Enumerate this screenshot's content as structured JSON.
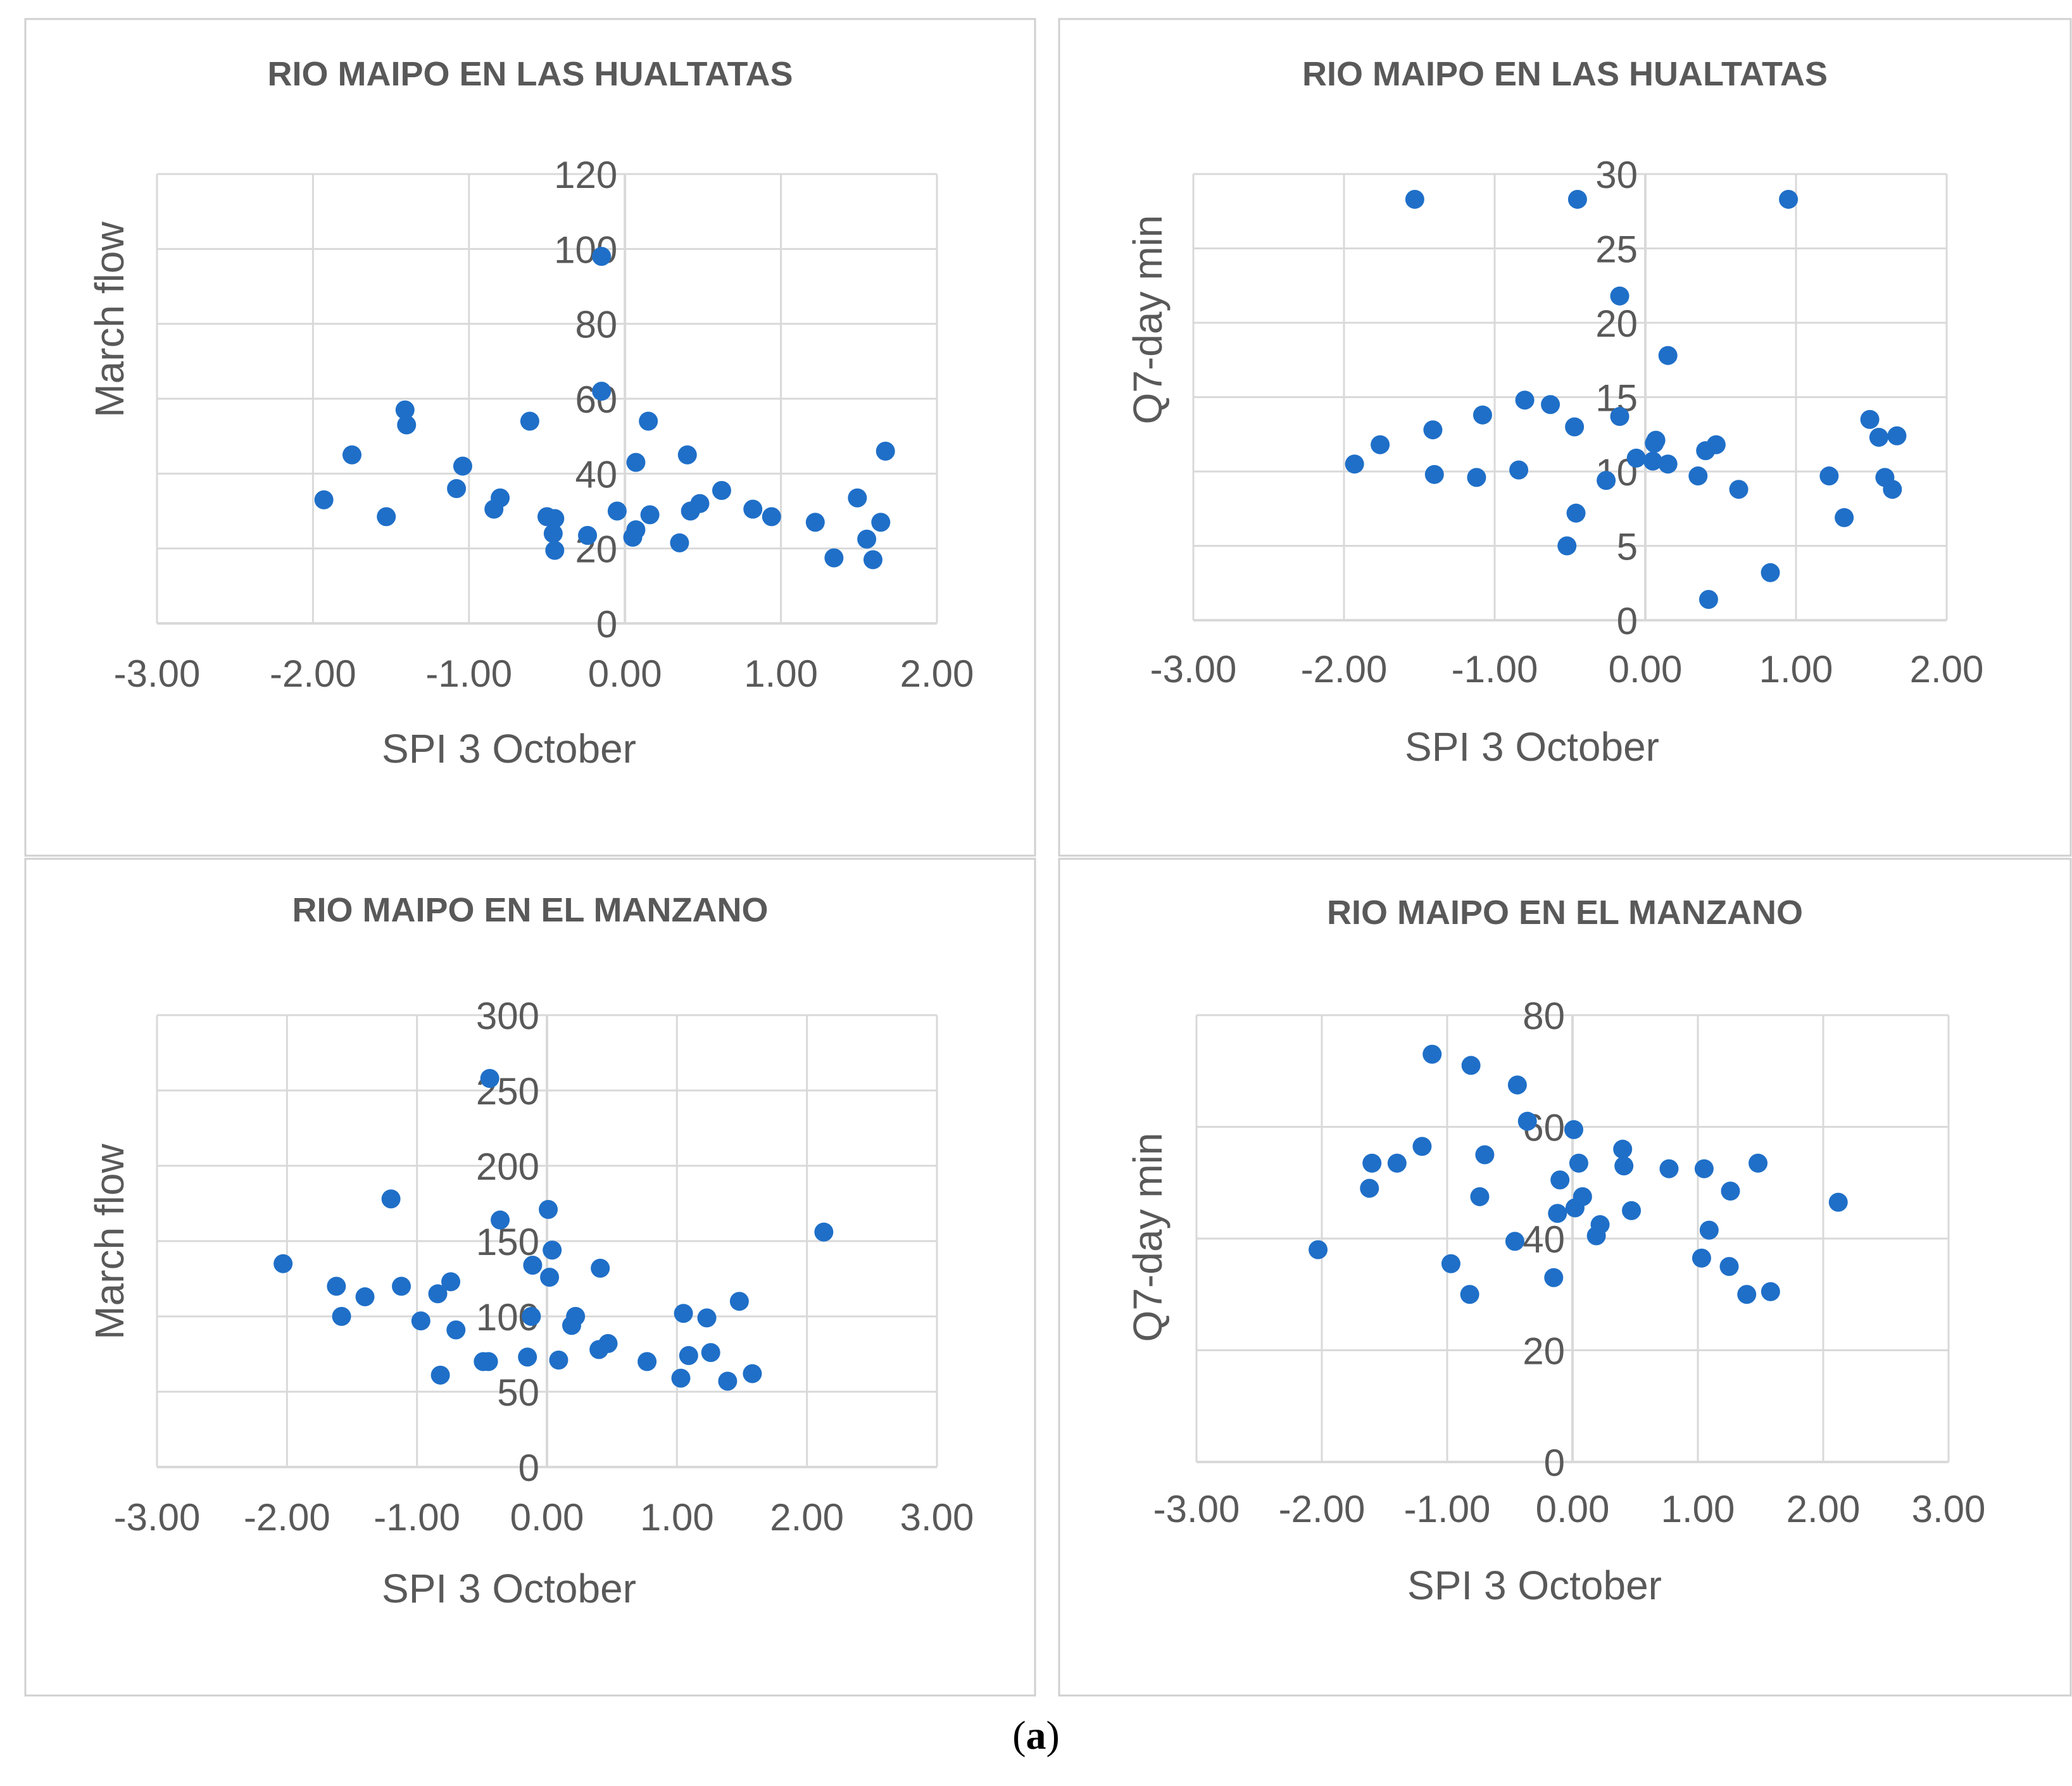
{
  "caption": {
    "open": "(",
    "letter": "a",
    "close": ")"
  },
  "style": {
    "point_color": "#1f6fc8",
    "grid_color": "#d9d9d9",
    "text_color": "#595959",
    "border_color": "#d0d0d0"
  },
  "chart_data": [
    {
      "type": "scatter",
      "title": "RIO MAIPO EN LAS HUALTATAS",
      "xlabel": "SPI 3 October",
      "ylabel": "March flow",
      "xlim": [
        -3,
        2
      ],
      "ylim": [
        0,
        120
      ],
      "xticks": [
        -3,
        -2,
        -1,
        0,
        1,
        2
      ],
      "xtick_labels": [
        "-3.00",
        "-2.00",
        "-1.00",
        "0.00",
        "1.00",
        "2.00"
      ],
      "yticks": [
        0,
        20,
        40,
        60,
        80,
        100,
        120
      ],
      "ytick_labels": [
        "0",
        "20",
        "40",
        "60",
        "80",
        "100",
        "120"
      ],
      "points": [
        [
          -1.93,
          33
        ],
        [
          -1.75,
          45
        ],
        [
          -1.53,
          28.5
        ],
        [
          -1.41,
          57
        ],
        [
          -1.4,
          53
        ],
        [
          -1.08,
          36
        ],
        [
          -1.04,
          42
        ],
        [
          -0.84,
          30.5
        ],
        [
          -0.8,
          33.5
        ],
        [
          -0.61,
          54
        ],
        [
          -0.5,
          28.5
        ],
        [
          -0.46,
          24
        ],
        [
          -0.45,
          28
        ],
        [
          -0.45,
          19.5
        ],
        [
          -0.24,
          23.5
        ],
        [
          -0.15,
          98
        ],
        [
          -0.15,
          62
        ],
        [
          -0.05,
          30
        ],
        [
          0.07,
          43
        ],
        [
          0.07,
          25
        ],
        [
          0.05,
          23
        ],
        [
          0.15,
          54
        ],
        [
          0.16,
          29
        ],
        [
          0.35,
          21.5
        ],
        [
          0.4,
          45
        ],
        [
          0.42,
          30
        ],
        [
          0.48,
          32
        ],
        [
          0.62,
          35.5
        ],
        [
          0.82,
          30.5
        ],
        [
          0.94,
          28.5
        ],
        [
          1.22,
          27
        ],
        [
          1.49,
          33.5
        ],
        [
          1.55,
          22.5
        ],
        [
          1.59,
          17
        ],
        [
          1.64,
          27
        ],
        [
          1.67,
          46
        ],
        [
          1.34,
          17.5
        ]
      ]
    },
    {
      "type": "scatter",
      "title": "RIO MAIPO EN LAS HUALTATAS",
      "xlabel": "SPI 3 October",
      "ylabel": "Q7-day min",
      "xlim": [
        -3,
        2
      ],
      "ylim": [
        0,
        30
      ],
      "xticks": [
        -3,
        -2,
        -1,
        0,
        1,
        2
      ],
      "xtick_labels": [
        "-3.00",
        "-2.00",
        "-1.00",
        "0.00",
        "1.00",
        "2.00"
      ],
      "yticks": [
        0,
        5,
        10,
        15,
        20,
        25,
        30
      ],
      "ytick_labels": [
        "0",
        "5",
        "10",
        "15",
        "20",
        "25",
        "30"
      ],
      "points": [
        [
          -1.93,
          10.5
        ],
        [
          -1.76,
          11.8
        ],
        [
          -1.53,
          28.3
        ],
        [
          -1.41,
          12.8
        ],
        [
          -1.4,
          9.8
        ],
        [
          -1.08,
          13.8
        ],
        [
          -1.12,
          9.6
        ],
        [
          -0.84,
          10.1
        ],
        [
          -0.8,
          14.8
        ],
        [
          -0.63,
          14.5
        ],
        [
          -0.52,
          5
        ],
        [
          -0.46,
          7.2
        ],
        [
          -0.47,
          13.0
        ],
        [
          -0.45,
          28.3
        ],
        [
          -0.26,
          9.4
        ],
        [
          -0.17,
          13.7
        ],
        [
          -0.17,
          21.8
        ],
        [
          -0.06,
          10.9
        ],
        [
          0.05,
          10.7
        ],
        [
          0.07,
          12.1
        ],
        [
          0.06,
          11.9
        ],
        [
          0.15,
          17.8
        ],
        [
          0.15,
          10.5
        ],
        [
          0.35,
          9.7
        ],
        [
          0.4,
          11.4
        ],
        [
          0.42,
          1.4
        ],
        [
          0.47,
          11.8
        ],
        [
          0.62,
          8.8
        ],
        [
          0.83,
          3.2
        ],
        [
          0.95,
          28.3
        ],
        [
          1.22,
          9.7
        ],
        [
          1.32,
          6.9
        ],
        [
          1.49,
          13.5
        ],
        [
          1.55,
          12.3
        ],
        [
          1.59,
          9.6
        ],
        [
          1.64,
          8.8
        ],
        [
          1.67,
          12.4
        ]
      ]
    },
    {
      "type": "scatter",
      "title": "RIO MAIPO EN EL MANZANO",
      "xlabel": "SPI 3 October",
      "ylabel": "March flow",
      "xlim": [
        -3,
        3
      ],
      "ylim": [
        0,
        300
      ],
      "xticks": [
        -3,
        -2,
        -1,
        0,
        1,
        2,
        3
      ],
      "xtick_labels": [
        "-3.00",
        "-2.00",
        "-1.00",
        "0.00",
        "1.00",
        "2.00",
        "3.00"
      ],
      "yticks": [
        0,
        50,
        100,
        150,
        200,
        250,
        300
      ],
      "ytick_labels": [
        "0",
        "50",
        "100",
        "150",
        "200",
        "250",
        "300"
      ],
      "points": [
        [
          -2.03,
          135
        ],
        [
          -1.62,
          120
        ],
        [
          -1.58,
          100
        ],
        [
          -1.4,
          113
        ],
        [
          -1.2,
          178
        ],
        [
          -1.12,
          120
        ],
        [
          -0.97,
          97
        ],
        [
          -0.84,
          115
        ],
        [
          -0.82,
          61
        ],
        [
          -0.74,
          123
        ],
        [
          -0.7,
          91
        ],
        [
          -0.49,
          70
        ],
        [
          -0.45,
          70
        ],
        [
          -0.44,
          258
        ],
        [
          -0.36,
          164
        ],
        [
          -0.15,
          73
        ],
        [
          -0.12,
          100
        ],
        [
          -0.11,
          134
        ],
        [
          0.01,
          171
        ],
        [
          0.02,
          126
        ],
        [
          0.04,
          144
        ],
        [
          0.09,
          71
        ],
        [
          0.19,
          94
        ],
        [
          0.22,
          100
        ],
        [
          0.4,
          78
        ],
        [
          0.41,
          132
        ],
        [
          0.47,
          82
        ],
        [
          0.77,
          70
        ],
        [
          1.03,
          59
        ],
        [
          1.05,
          102
        ],
        [
          1.09,
          74
        ],
        [
          1.23,
          99
        ],
        [
          1.26,
          76
        ],
        [
          1.39,
          57
        ],
        [
          1.48,
          110
        ],
        [
          1.58,
          62
        ],
        [
          2.13,
          156
        ]
      ]
    },
    {
      "type": "scatter",
      "title": "RIO MAIPO EN EL MANZANO",
      "xlabel": "SPI 3 October",
      "ylabel": "Q7-day min",
      "xlim": [
        -3,
        3
      ],
      "ylim": [
        0,
        80
      ],
      "xticks": [
        -3,
        -2,
        -1,
        0,
        1,
        2,
        3
      ],
      "xtick_labels": [
        "-3.00",
        "-2.00",
        "-1.00",
        "0.00",
        "1.00",
        "2.00",
        "3.00"
      ],
      "yticks": [
        0,
        20,
        40,
        60,
        80
      ],
      "ytick_labels": [
        "0",
        "20",
        "40",
        "60",
        "80"
      ],
      "points": [
        [
          -2.03,
          38
        ],
        [
          -1.62,
          49
        ],
        [
          -1.6,
          53.5
        ],
        [
          -1.4,
          53.5
        ],
        [
          -1.2,
          56.5
        ],
        [
          -1.12,
          73
        ],
        [
          -0.97,
          35.5
        ],
        [
          -0.82,
          30
        ],
        [
          -0.81,
          71
        ],
        [
          -0.74,
          47.5
        ],
        [
          -0.7,
          55
        ],
        [
          -0.44,
          67.5
        ],
        [
          -0.46,
          39.5
        ],
        [
          -0.36,
          61
        ],
        [
          -0.15,
          33
        ],
        [
          -0.12,
          44.5
        ],
        [
          -0.1,
          50.5
        ],
        [
          0.01,
          59.5
        ],
        [
          0.02,
          45.5
        ],
        [
          0.05,
          53.5
        ],
        [
          0.08,
          47.5
        ],
        [
          0.19,
          40.5
        ],
        [
          0.22,
          42.5
        ],
        [
          0.4,
          56
        ],
        [
          0.41,
          53
        ],
        [
          0.47,
          45
        ],
        [
          0.77,
          52.5
        ],
        [
          1.03,
          36.5
        ],
        [
          1.05,
          52.5
        ],
        [
          1.09,
          41.5
        ],
        [
          1.25,
          35
        ],
        [
          1.26,
          48.5
        ],
        [
          1.39,
          30
        ],
        [
          1.48,
          53.5
        ],
        [
          1.58,
          30.5
        ],
        [
          2.12,
          46.5
        ]
      ]
    }
  ]
}
